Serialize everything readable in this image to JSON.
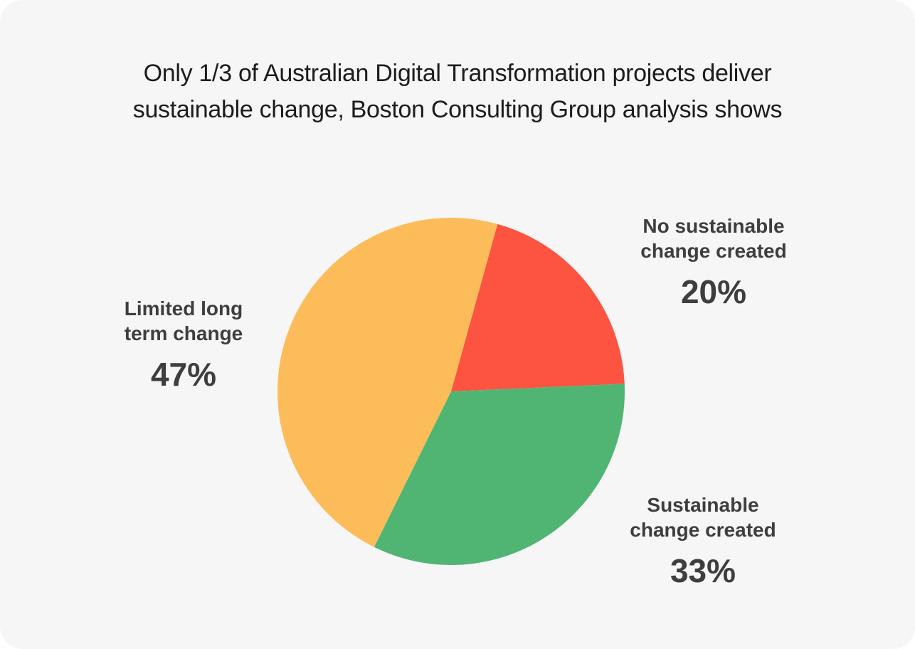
{
  "page": {
    "background_color": "#ffffff",
    "card_color": "#f6f6f7"
  },
  "title": {
    "text": "Only 1/3 of Australian Digital Transformation projects deliver\nsustainable change, Boston Consulting Group analysis shows"
  },
  "chart_data": {
    "type": "pie",
    "title": "Only 1/3 of Australian Digital Transformation projects deliver sustainable change, Boston Consulting Group analysis shows",
    "slices": [
      {
        "label": "No sustainable change created",
        "value": 20,
        "percent_label": "20%",
        "color": "#fc5440"
      },
      {
        "label": "Sustainable change created",
        "value": 33,
        "percent_label": "33%",
        "color": "#50b573"
      },
      {
        "label": "Limited long term change",
        "value": 47,
        "percent_label": "47%",
        "color": "#fcbc5a"
      }
    ],
    "start_angle_deg": 15.5,
    "direction": "clockwise",
    "legend_position": "callout labels around pie",
    "grid": false
  },
  "callouts": [
    {
      "name": "No sustainable\nchange created",
      "percent": "20%"
    },
    {
      "name": "Limited long\nterm change",
      "percent": "47%"
    },
    {
      "name": "Sustainable\nchange created",
      "percent": "33%"
    }
  ],
  "colors": {
    "slice_red": "#fc5440",
    "slice_green": "#50b573",
    "slice_orange": "#fcbc5a",
    "title_text": "#1c1c1c",
    "label_text": "#3e3e3e"
  }
}
